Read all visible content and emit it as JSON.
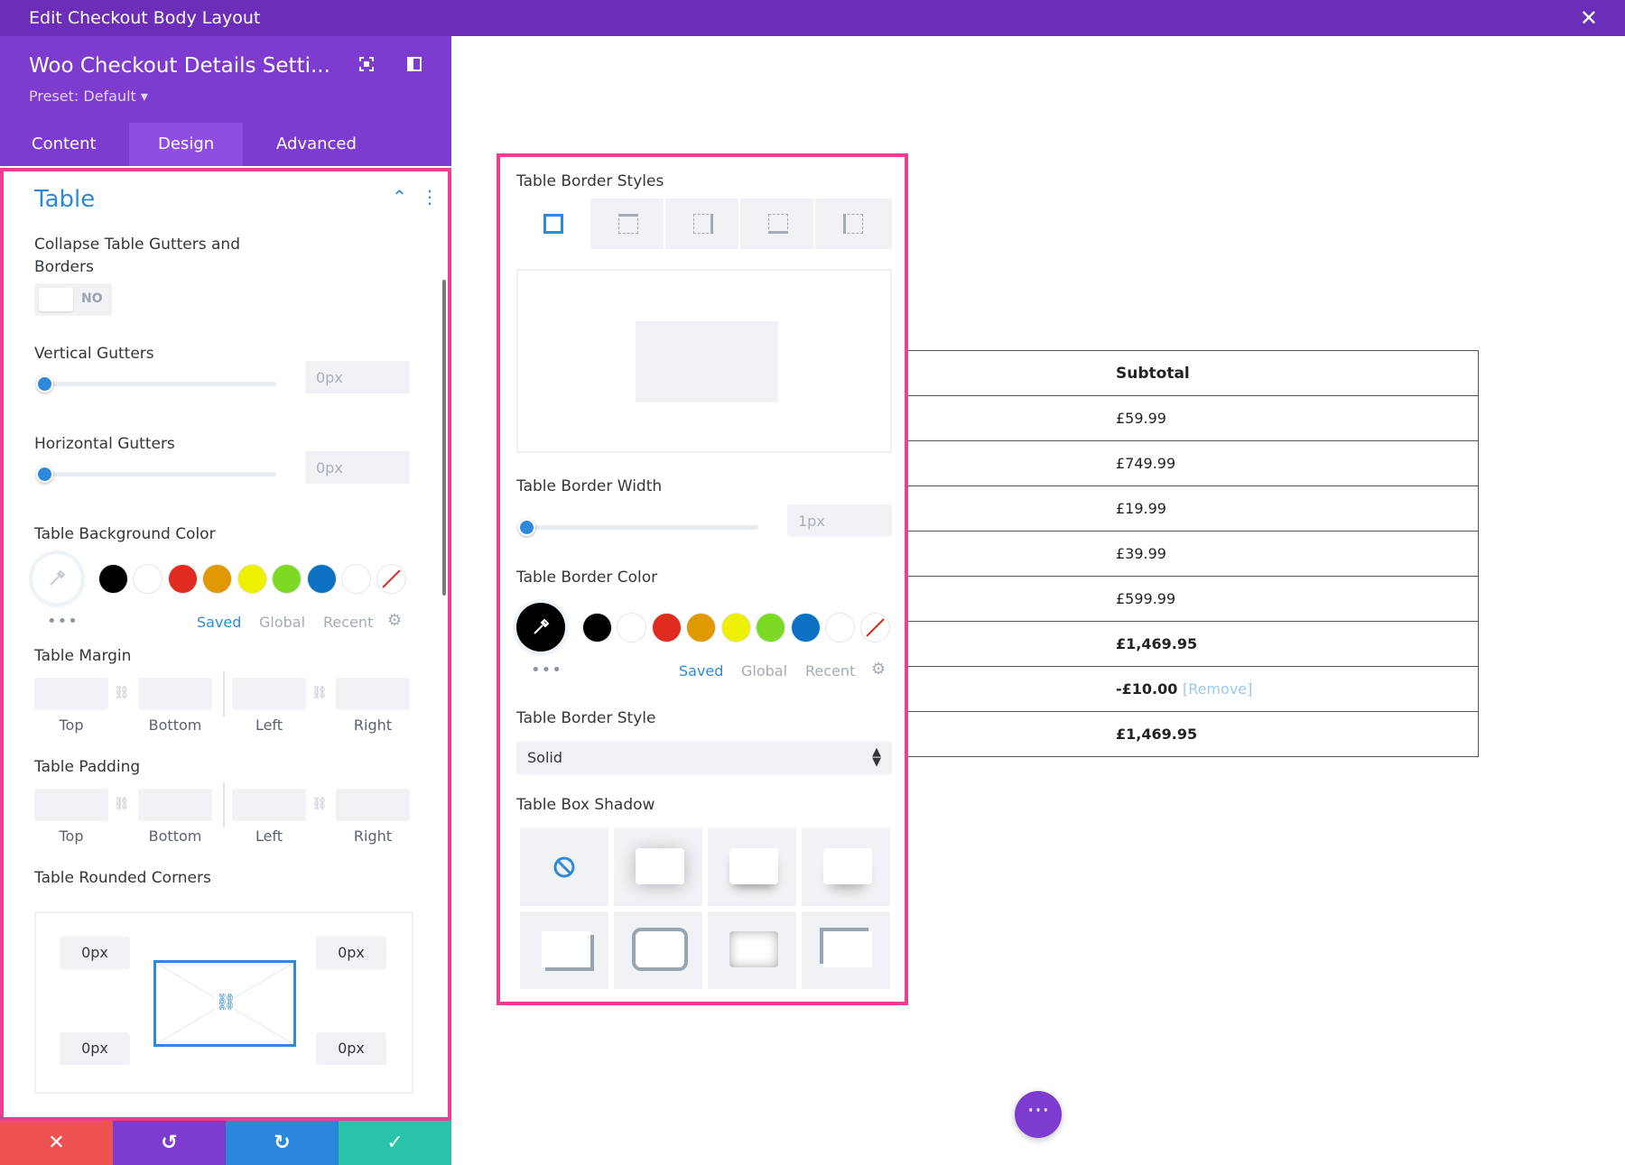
{
  "window": {
    "title": "Edit Checkout Body Layout",
    "close_icon": "✕"
  },
  "panel": {
    "title": "Woo Checkout Details Setti...",
    "preset": "Preset: Default ▾",
    "tabs": [
      "Content",
      "Design",
      "Advanced"
    ],
    "active_tab": "Design"
  },
  "section": {
    "title": "Table",
    "collapse": {
      "label": "Collapse Table Gutters and Borders",
      "value": "NO"
    },
    "vertical_gutters": {
      "label": "Vertical Gutters",
      "value": "0px"
    },
    "horizontal_gutters": {
      "label": "Horizontal Gutters",
      "value": "0px"
    },
    "bg_color": {
      "label": "Table Background Color",
      "swatches": [
        "#000000",
        "#ffffff",
        "#e02b20",
        "#e09900",
        "#edf000",
        "#7cda24",
        "#0c71c3",
        "#ffffff"
      ],
      "tabs": [
        "Saved",
        "Global",
        "Recent"
      ]
    },
    "margin": {
      "label": "Table Margin",
      "sides": [
        "Top",
        "Bottom",
        "Left",
        "Right"
      ]
    },
    "padding": {
      "label": "Table Padding",
      "sides": [
        "Top",
        "Bottom",
        "Left",
        "Right"
      ]
    },
    "corners": {
      "label": "Table Rounded Corners",
      "values": [
        "0px",
        "0px",
        "0px",
        "0px"
      ]
    }
  },
  "popup": {
    "border_styles_label": "Table Border Styles",
    "border_width": {
      "label": "Table Border Width",
      "value": "1px"
    },
    "border_color": {
      "label": "Table Border Color",
      "selected": "#000000",
      "swatches": [
        "#000000",
        "#ffffff",
        "#e02b20",
        "#e09900",
        "#edf000",
        "#7cda24",
        "#0c71c3",
        "#ffffff"
      ],
      "tabs": [
        "Saved",
        "Global",
        "Recent"
      ]
    },
    "border_style": {
      "label": "Table Border Style",
      "value": "Solid"
    },
    "box_shadow": {
      "label": "Table Box Shadow"
    }
  },
  "table": {
    "header": "Subtotal",
    "rows": [
      "£59.99",
      "£749.99",
      "£19.99",
      "£39.99",
      "£599.99",
      "£1,469.95"
    ],
    "discount": "-£10.00",
    "remove_link": "[Remove]",
    "total": "£1,469.95"
  },
  "colors": {
    "brand_purple": "#7e3bd0",
    "accent_blue": "#2e8ad8",
    "highlight_pink": "#ec3e93"
  }
}
